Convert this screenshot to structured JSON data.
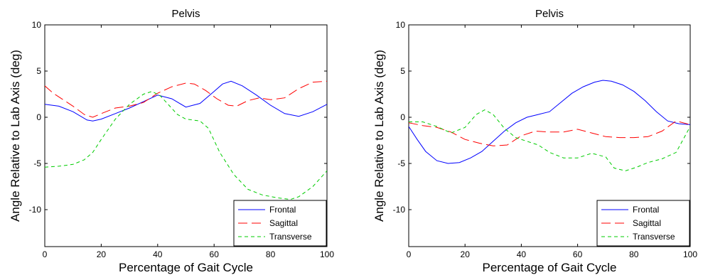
{
  "chart_data": [
    {
      "type": "line",
      "title": "Pelvis",
      "xlabel": "Percentage of Gait Cycle",
      "ylabel": "Angle Relative to Lab Axis (deg)",
      "xlim": [
        0,
        100
      ],
      "ylim": [
        -14,
        10
      ],
      "xticks": [
        0,
        20,
        40,
        60,
        80,
        100
      ],
      "yticks": [
        -10,
        -5,
        0,
        5,
        10
      ],
      "grid": false,
      "legend_position": "bottom-right",
      "series": [
        {
          "name": "Frontal",
          "color": "#0000ff",
          "dash": "solid",
          "x": [
            0,
            5,
            10,
            15,
            17,
            20,
            25,
            30,
            35,
            40,
            45,
            50,
            55,
            60,
            63,
            66,
            70,
            75,
            80,
            85,
            90,
            95,
            100
          ],
          "y": [
            1.4,
            1.2,
            0.6,
            -0.3,
            -0.4,
            -0.2,
            0.4,
            1.0,
            1.7,
            2.4,
            2.0,
            1.1,
            1.5,
            2.8,
            3.6,
            3.9,
            3.4,
            2.4,
            1.3,
            0.4,
            0.1,
            0.6,
            1.4
          ]
        },
        {
          "name": "Sagittal",
          "color": "#ff0000",
          "dash": "long",
          "x": [
            0,
            3,
            7,
            10,
            14,
            17,
            20,
            25,
            30,
            35,
            40,
            45,
            50,
            53,
            57,
            61,
            65,
            68,
            72,
            76,
            80,
            85,
            90,
            95,
            100
          ],
          "y": [
            3.4,
            2.6,
            1.8,
            1.2,
            0.3,
            0.0,
            0.4,
            1.0,
            1.2,
            1.6,
            2.6,
            3.3,
            3.7,
            3.6,
            2.9,
            2.0,
            1.3,
            1.2,
            1.8,
            2.1,
            1.9,
            2.1,
            3.1,
            3.8,
            3.9
          ]
        },
        {
          "name": "Transverse",
          "color": "#00cc00",
          "dash": "short",
          "x": [
            0,
            5,
            10,
            14,
            17,
            20,
            25,
            30,
            35,
            38,
            41,
            44,
            47,
            50,
            55,
            58,
            62,
            67,
            72,
            77,
            82,
            87,
            90,
            95,
            100
          ],
          "y": [
            -5.4,
            -5.3,
            -5.1,
            -4.6,
            -3.8,
            -2.4,
            -0.2,
            1.4,
            2.5,
            2.8,
            2.3,
            1.3,
            0.3,
            -0.2,
            -0.4,
            -1.2,
            -3.8,
            -6.2,
            -7.8,
            -8.4,
            -8.7,
            -8.9,
            -8.6,
            -7.5,
            -5.8
          ]
        }
      ]
    },
    {
      "type": "line",
      "title": "Pelvis",
      "xlabel": "Percentage of Gait Cycle",
      "ylabel": "Angle Relative to Lab Axis (deg)",
      "xlim": [
        0,
        100
      ],
      "ylim": [
        -14,
        10
      ],
      "xticks": [
        0,
        20,
        40,
        60,
        80,
        100
      ],
      "yticks": [
        -10,
        -5,
        0,
        5,
        10
      ],
      "grid": false,
      "legend_position": "bottom-right",
      "series": [
        {
          "name": "Frontal",
          "color": "#0000ff",
          "dash": "solid",
          "x": [
            0,
            3,
            6,
            10,
            14,
            18,
            22,
            26,
            30,
            34,
            38,
            42,
            46,
            50,
            54,
            58,
            62,
            66,
            69,
            72,
            76,
            80,
            84,
            88,
            92,
            96,
            100
          ],
          "y": [
            -1.0,
            -2.4,
            -3.7,
            -4.7,
            -5.0,
            -4.9,
            -4.4,
            -3.7,
            -2.6,
            -1.5,
            -0.6,
            0.0,
            0.3,
            0.6,
            1.6,
            2.6,
            3.3,
            3.8,
            4.0,
            3.9,
            3.5,
            2.8,
            1.8,
            0.6,
            -0.4,
            -0.7,
            -0.8
          ]
        },
        {
          "name": "Sagittal",
          "color": "#ff0000",
          "dash": "long",
          "x": [
            0,
            5,
            10,
            15,
            20,
            25,
            30,
            35,
            40,
            45,
            50,
            55,
            60,
            65,
            70,
            75,
            80,
            85,
            90,
            95,
            100
          ],
          "y": [
            -0.6,
            -0.9,
            -1.1,
            -1.6,
            -2.4,
            -2.8,
            -3.1,
            -3.0,
            -2.0,
            -1.5,
            -1.6,
            -1.6,
            -1.3,
            -1.7,
            -2.1,
            -2.2,
            -2.2,
            -2.1,
            -1.5,
            -0.4,
            -0.8
          ]
        },
        {
          "name": "Transverse",
          "color": "#00cc00",
          "dash": "short",
          "x": [
            0,
            5,
            10,
            15,
            20,
            24,
            27,
            30,
            34,
            38,
            42,
            46,
            50,
            55,
            60,
            65,
            70,
            73,
            77,
            81,
            85,
            90,
            95,
            100
          ],
          "y": [
            -0.5,
            -0.5,
            -1.0,
            -1.7,
            -1.1,
            0.3,
            0.8,
            0.3,
            -1.2,
            -2.2,
            -2.6,
            -3.0,
            -3.8,
            -4.4,
            -4.4,
            -3.9,
            -4.3,
            -5.5,
            -5.8,
            -5.4,
            -4.9,
            -4.5,
            -3.8,
            -1.0
          ]
        }
      ]
    }
  ]
}
